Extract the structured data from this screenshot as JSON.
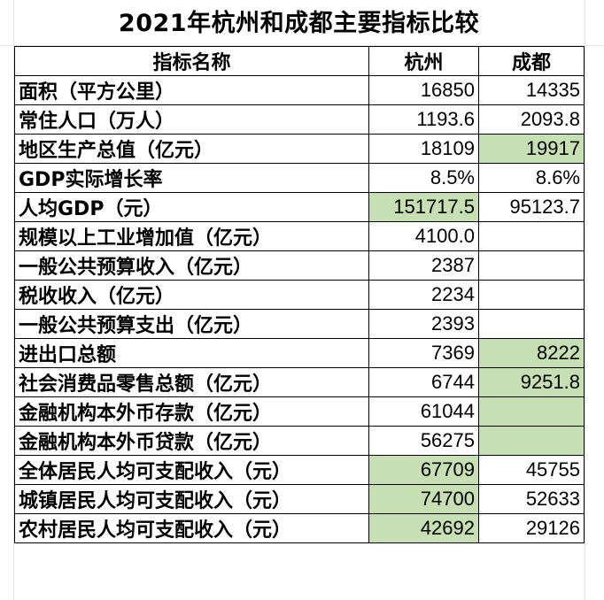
{
  "title": "2021年杭州和成都主要指标比较",
  "header": {
    "indicator": "指标名称",
    "hangzhou": "杭州",
    "chengdu": "成都"
  },
  "highlight_color": "#c6dfb3",
  "rows": [
    {
      "label": "面积（平方公里）",
      "hangzhou": "16850",
      "chengdu": "14335",
      "hl_hangzhou": false,
      "hl_chengdu": false
    },
    {
      "label": "常住人口（万人）",
      "hangzhou": "1193.6",
      "chengdu": "2093.8",
      "hl_hangzhou": false,
      "hl_chengdu": false
    },
    {
      "label": "地区生产总值（亿元）",
      "hangzhou": "18109",
      "chengdu": "19917",
      "hl_hangzhou": false,
      "hl_chengdu": true
    },
    {
      "label": "GDP实际增长率",
      "hangzhou": "8.5%",
      "chengdu": "8.6%",
      "hl_hangzhou": false,
      "hl_chengdu": false
    },
    {
      "label": "人均GDP（元）",
      "hangzhou": "151717.5",
      "chengdu": "95123.7",
      "hl_hangzhou": true,
      "hl_chengdu": false
    },
    {
      "label": "规模以上工业增加值（亿元）",
      "hangzhou": "4100.0",
      "chengdu": "",
      "hl_hangzhou": false,
      "hl_chengdu": false
    },
    {
      "label": "一般公共预算收入（亿元）",
      "hangzhou": "2387",
      "chengdu": "",
      "hl_hangzhou": false,
      "hl_chengdu": false
    },
    {
      "label": "税收收入（亿元）",
      "hangzhou": "2234",
      "chengdu": "",
      "hl_hangzhou": false,
      "hl_chengdu": false
    },
    {
      "label": "一般公共预算支出（亿元）",
      "hangzhou": "2393",
      "chengdu": "",
      "hl_hangzhou": false,
      "hl_chengdu": false
    },
    {
      "label": "进出口总额",
      "hangzhou": "7369",
      "chengdu": "8222",
      "hl_hangzhou": false,
      "hl_chengdu": true
    },
    {
      "label": "社会消费品零售总额（亿元）",
      "hangzhou": "6744",
      "chengdu": "9251.8",
      "hl_hangzhou": false,
      "hl_chengdu": true
    },
    {
      "label": "金融机构本外币存款（亿元）",
      "hangzhou": "61044",
      "chengdu": "",
      "hl_hangzhou": false,
      "hl_chengdu": true
    },
    {
      "label": "金融机构本外币贷款（亿元）",
      "hangzhou": "56275",
      "chengdu": "",
      "hl_hangzhou": false,
      "hl_chengdu": true
    },
    {
      "label": "全体居民人均可支配收入（元）",
      "hangzhou": "67709",
      "chengdu": "45755",
      "hl_hangzhou": true,
      "hl_chengdu": false
    },
    {
      "label": "城镇居民人均可支配收入（元）",
      "hangzhou": "74700",
      "chengdu": "52633",
      "hl_hangzhou": true,
      "hl_chengdu": false
    },
    {
      "label": "农村居民人均可支配收入（元）",
      "hangzhou": "42692",
      "chengdu": "29126",
      "hl_hangzhou": true,
      "hl_chengdu": false
    }
  ]
}
